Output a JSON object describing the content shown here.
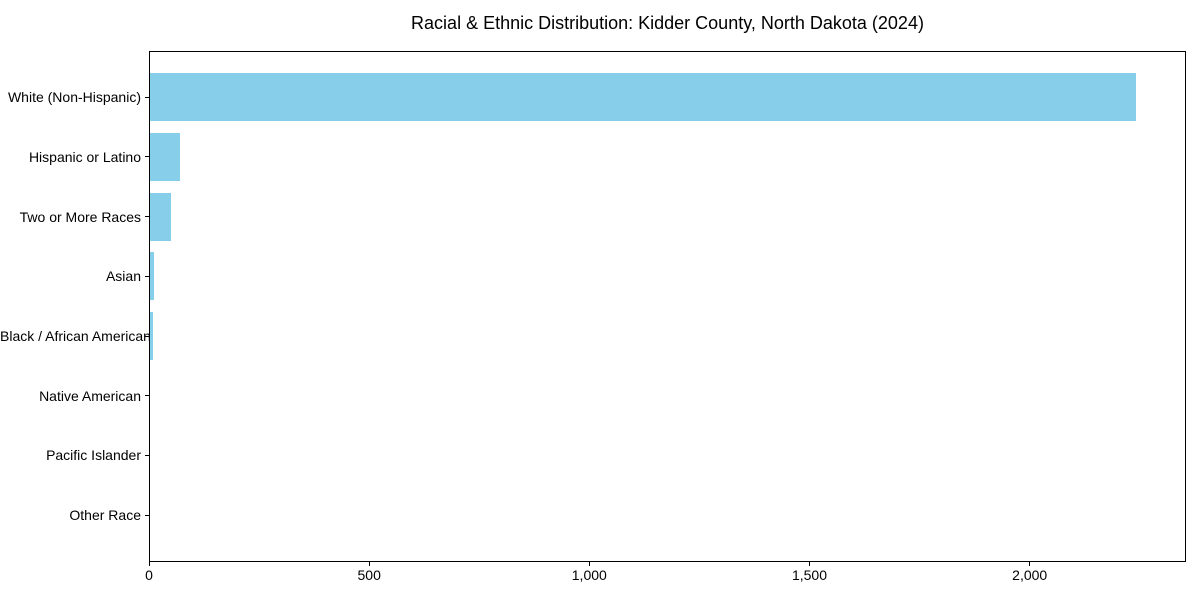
{
  "chart_data": {
    "type": "bar",
    "orientation": "horizontal",
    "title": "Racial & Ethnic Distribution: Kidder County, North Dakota (2024)",
    "categories": [
      "White (Non-Hispanic)",
      "Hispanic or Latino",
      "Two or More Races",
      "Asian",
      "Black / African American",
      "Native American",
      "Pacific Islander",
      "Other Race"
    ],
    "values": [
      2240,
      68,
      48,
      9,
      7,
      0,
      0,
      0
    ],
    "xlabel": "",
    "ylabel": "",
    "xlim": [
      0,
      2355
    ],
    "xticks": [
      0,
      500,
      1000,
      1500,
      2000
    ],
    "xtick_labels": [
      "0",
      "500",
      "1,000",
      "1,500",
      "2,000"
    ],
    "bar_color": "#87CEEB",
    "background_color": "#FFFFFF",
    "axis_color": "#000000",
    "grid": false,
    "legend": null
  }
}
